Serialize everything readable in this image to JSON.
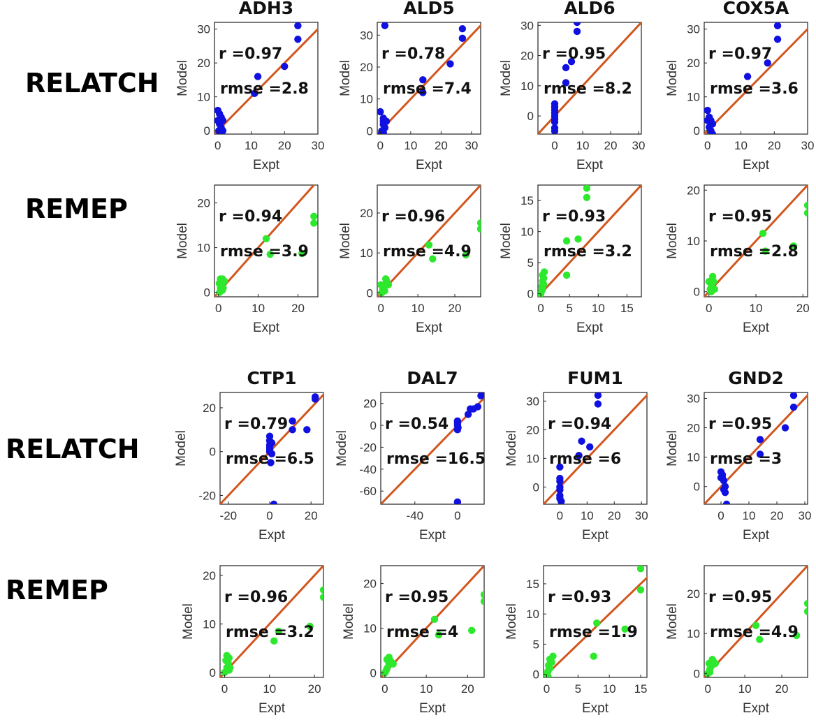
{
  "colors": {
    "relatch_points": "#1010e0",
    "remep_points": "#2ee82e",
    "identity_line": "#d2561e",
    "axes": "#222222"
  },
  "row_labels": [
    "RELATCH",
    "REMEP",
    "RELATCH",
    "REMEP"
  ],
  "chart_data": [
    {
      "type": "scatter",
      "title": "ADH3",
      "method": "RELATCH",
      "xlabel": "Expt",
      "ylabel": "Model",
      "xlim": [
        -1,
        30
      ],
      "ylim": [
        -1,
        32
      ],
      "xticks": [
        0,
        10,
        20,
        30
      ],
      "yticks": [
        0,
        10,
        20,
        30
      ],
      "r_label": "r =0.97",
      "rmse_label": "rmse =2.8",
      "points": [
        [
          0,
          6
        ],
        [
          0.5,
          5
        ],
        [
          1,
          4
        ],
        [
          1.5,
          3
        ],
        [
          0.5,
          2
        ],
        [
          1,
          1
        ],
        [
          1.5,
          0
        ],
        [
          0.3,
          0
        ],
        [
          1,
          -1
        ],
        [
          11,
          11
        ],
        [
          12,
          16
        ],
        [
          20,
          19
        ],
        [
          24,
          27
        ],
        [
          24,
          31
        ],
        [
          1,
          3
        ],
        [
          0,
          3
        ]
      ]
    },
    {
      "type": "scatter",
      "title": "ALD5",
      "method": "RELATCH",
      "xlabel": "Expt",
      "ylabel": "Model",
      "xlim": [
        -1,
        33
      ],
      "ylim": [
        -1,
        34
      ],
      "xticks": [
        0,
        10,
        20,
        30
      ],
      "yticks": [
        0,
        10,
        20,
        30
      ],
      "r_label": "r =0.78",
      "rmse_label": "rmse =7.4",
      "points": [
        [
          0,
          6
        ],
        [
          1,
          4
        ],
        [
          1,
          3
        ],
        [
          2,
          3
        ],
        [
          1,
          2
        ],
        [
          1.5,
          1
        ],
        [
          0.5,
          0
        ],
        [
          1,
          -0.5
        ],
        [
          0.3,
          -1
        ],
        [
          1.5,
          33
        ],
        [
          14,
          12
        ],
        [
          14,
          16
        ],
        [
          23,
          21
        ],
        [
          27,
          29
        ],
        [
          27,
          32
        ]
      ]
    },
    {
      "type": "scatter",
      "title": "ALD6",
      "method": "RELATCH",
      "xlabel": "Expt",
      "ylabel": "Model",
      "xlim": [
        -6,
        31
      ],
      "ylim": [
        -6,
        31
      ],
      "xticks": [
        0,
        10,
        20,
        30
      ],
      "yticks": [
        0,
        10,
        20,
        30
      ],
      "r_label": "r =0.95",
      "rmse_label": "rmse =8.2",
      "points": [
        [
          0,
          4
        ],
        [
          0,
          3
        ],
        [
          0,
          2
        ],
        [
          0,
          1
        ],
        [
          0,
          0
        ],
        [
          0,
          -1
        ],
        [
          0,
          -2
        ],
        [
          0,
          -4
        ],
        [
          0,
          -5
        ],
        [
          4,
          11
        ],
        [
          4,
          16
        ],
        [
          6,
          18
        ],
        [
          8,
          28
        ],
        [
          8,
          31
        ]
      ]
    },
    {
      "type": "scatter",
      "title": "COX5A",
      "method": "RELATCH",
      "xlabel": "Expt",
      "ylabel": "Model",
      "xlim": [
        -1,
        30
      ],
      "ylim": [
        -1,
        32
      ],
      "xticks": [
        0,
        10,
        20,
        30
      ],
      "yticks": [
        0,
        10,
        20,
        30
      ],
      "r_label": "r =0.97",
      "rmse_label": "rmse =3.6",
      "points": [
        [
          0,
          6
        ],
        [
          0.5,
          4
        ],
        [
          1,
          3
        ],
        [
          1.5,
          2
        ],
        [
          0.5,
          1
        ],
        [
          1,
          0
        ],
        [
          1.5,
          -1
        ],
        [
          12,
          16
        ],
        [
          18,
          20
        ],
        [
          21,
          27
        ],
        [
          21,
          31
        ],
        [
          0,
          3
        ]
      ]
    },
    {
      "type": "scatter",
      "title": "",
      "method": "REMEP",
      "xlabel": "Expt",
      "ylabel": "Model",
      "xlim": [
        -1,
        25
      ],
      "ylim": [
        -1,
        24
      ],
      "xticks": [
        0,
        10,
        20
      ],
      "yticks": [
        0,
        10,
        20
      ],
      "r_label": "r =0.94",
      "rmse_label": "rmse =3.9",
      "points": [
        [
          0.3,
          0
        ],
        [
          0.5,
          1
        ],
        [
          0.8,
          2
        ],
        [
          1,
          3
        ],
        [
          1.2,
          1
        ],
        [
          0.5,
          3
        ],
        [
          1,
          0.5
        ],
        [
          0.2,
          2
        ],
        [
          1.5,
          2.5
        ],
        [
          12,
          12
        ],
        [
          13,
          8.5
        ],
        [
          21,
          8.7
        ],
        [
          24,
          17
        ],
        [
          24,
          15.5
        ]
      ]
    },
    {
      "type": "scatter",
      "title": "",
      "method": "REMEP",
      "xlabel": "Expt",
      "ylabel": "Model",
      "xlim": [
        -1,
        27
      ],
      "ylim": [
        -1,
        27
      ],
      "xticks": [
        0,
        10,
        20
      ],
      "yticks": [
        0,
        10,
        20
      ],
      "r_label": "r =0.96",
      "rmse_label": "rmse =4.9",
      "points": [
        [
          0,
          2
        ],
        [
          0.5,
          1
        ],
        [
          1,
          0.5
        ],
        [
          1.5,
          3
        ],
        [
          1,
          2
        ],
        [
          1.3,
          3.5
        ],
        [
          0.2,
          0
        ],
        [
          2,
          2
        ],
        [
          13,
          12
        ],
        [
          14,
          8.5
        ],
        [
          23,
          9.5
        ],
        [
          27,
          17.5
        ],
        [
          27,
          16
        ]
      ]
    },
    {
      "type": "scatter",
      "title": "",
      "method": "REMEP",
      "xlabel": "Expt",
      "ylabel": "Model",
      "xlim": [
        -0.5,
        17.5
      ],
      "ylim": [
        -0.5,
        17.5
      ],
      "xticks": [
        0,
        5,
        10,
        15
      ],
      "yticks": [
        0,
        5,
        10,
        15
      ],
      "r_label": "r =0.93",
      "rmse_label": "rmse =3.2",
      "points": [
        [
          0,
          0
        ],
        [
          0.2,
          0.5
        ],
        [
          0.3,
          1
        ],
        [
          0.5,
          1.5
        ],
        [
          0.3,
          2
        ],
        [
          0.5,
          2.5
        ],
        [
          0.3,
          3
        ],
        [
          0.6,
          3.5
        ],
        [
          0.2,
          1.2
        ],
        [
          4.5,
          3
        ],
        [
          4.5,
          8.5
        ],
        [
          6.5,
          8.8
        ],
        [
          8,
          15.5
        ],
        [
          8,
          17
        ]
      ]
    },
    {
      "type": "scatter",
      "title": "",
      "method": "REMEP",
      "xlabel": "Expt",
      "ylabel": "Model",
      "xlim": [
        -1,
        21
      ],
      "ylim": [
        -1,
        21
      ],
      "xticks": [
        0,
        10,
        20
      ],
      "yticks": [
        0,
        10,
        20
      ],
      "r_label": "r =0.95",
      "rmse_label": "rmse =2.8",
      "points": [
        [
          0,
          2
        ],
        [
          0.5,
          1
        ],
        [
          0.8,
          3
        ],
        [
          1,
          2
        ],
        [
          0.5,
          0
        ],
        [
          1.2,
          0.5
        ],
        [
          0.3,
          0.5
        ],
        [
          11.5,
          11.5
        ],
        [
          12,
          8
        ],
        [
          18,
          9
        ],
        [
          21,
          17
        ],
        [
          21,
          15.5
        ]
      ]
    },
    {
      "type": "scatter",
      "title": "CTP1",
      "method": "RELATCH",
      "xlabel": "Expt",
      "ylabel": "Model",
      "xlim": [
        -24,
        26
      ],
      "ylim": [
        -24,
        27
      ],
      "xticks": [
        -20,
        0,
        20
      ],
      "yticks": [
        -20,
        0,
        20
      ],
      "r_label": "r =0.79",
      "rmse_label": "rmse =6.5",
      "points": [
        [
          0,
          7
        ],
        [
          0,
          5
        ],
        [
          0,
          3
        ],
        [
          0,
          2
        ],
        [
          0,
          1
        ],
        [
          0,
          0
        ],
        [
          1,
          -1
        ],
        [
          0.5,
          -5
        ],
        [
          2,
          -24
        ],
        [
          11,
          10
        ],
        [
          11,
          14
        ],
        [
          18,
          10
        ],
        [
          22,
          24
        ],
        [
          22,
          25
        ],
        [
          1,
          4
        ]
      ]
    },
    {
      "type": "scatter",
      "title": "DAL7",
      "method": "RELATCH",
      "xlabel": "Expt",
      "ylabel": "Model",
      "xlim": [
        -72,
        25
      ],
      "ylim": [
        -72,
        30
      ],
      "xticks": [
        -40,
        0
      ],
      "yticks": [
        -60,
        -40,
        -20,
        0,
        20
      ],
      "r_label": "r =0.54",
      "rmse_label": "rmse =16.5",
      "points": [
        [
          0,
          4
        ],
        [
          0,
          2
        ],
        [
          0,
          0
        ],
        [
          0.5,
          -2
        ],
        [
          0,
          -4
        ],
        [
          0,
          -70
        ],
        [
          10,
          10
        ],
        [
          12,
          15
        ],
        [
          15,
          15
        ],
        [
          19,
          17
        ],
        [
          22,
          27
        ],
        [
          23,
          28
        ]
      ]
    },
    {
      "type": "scatter",
      "title": "FUM1",
      "method": "RELATCH",
      "xlabel": "Expt",
      "ylabel": "Model",
      "xlim": [
        -6,
        32
      ],
      "ylim": [
        -6,
        33
      ],
      "xticks": [
        0,
        10,
        20,
        30
      ],
      "yticks": [
        0,
        10,
        20,
        30
      ],
      "r_label": "r =0.94",
      "rmse_label": "rmse =6",
      "points": [
        [
          0,
          7
        ],
        [
          0,
          3
        ],
        [
          0,
          2
        ],
        [
          0,
          0
        ],
        [
          0,
          -1
        ],
        [
          0,
          -3
        ],
        [
          0,
          -4
        ],
        [
          0.5,
          -5
        ],
        [
          7,
          11
        ],
        [
          8,
          16
        ],
        [
          11,
          14
        ],
        [
          14,
          29
        ],
        [
          14,
          32
        ]
      ]
    },
    {
      "type": "scatter",
      "title": "GND2",
      "method": "RELATCH",
      "xlabel": "Expt",
      "ylabel": "Model",
      "xlim": [
        -6,
        31
      ],
      "ylim": [
        -6,
        32
      ],
      "xticks": [
        0,
        10,
        20,
        30
      ],
      "yticks": [
        0,
        10,
        20,
        30
      ],
      "r_label": "r =0.95",
      "rmse_label": "rmse =3",
      "points": [
        [
          0,
          5
        ],
        [
          0.5,
          4
        ],
        [
          0.5,
          3
        ],
        [
          1,
          2
        ],
        [
          1.5,
          0
        ],
        [
          1,
          -1
        ],
        [
          1.5,
          -2
        ],
        [
          2,
          -6
        ],
        [
          14,
          11
        ],
        [
          14,
          16
        ],
        [
          23,
          20
        ],
        [
          26,
          27
        ],
        [
          26,
          31
        ],
        [
          0,
          3
        ]
      ]
    },
    {
      "type": "scatter",
      "title": "",
      "method": "REMEP",
      "xlabel": "Expt",
      "ylabel": "Model",
      "xlim": [
        -1,
        22
      ],
      "ylim": [
        -1,
        22
      ],
      "xticks": [
        0,
        10,
        20
      ],
      "yticks": [
        0,
        10,
        20
      ],
      "r_label": "r =0.96",
      "rmse_label": "rmse =3.2",
      "points": [
        [
          0,
          0
        ],
        [
          0.5,
          1
        ],
        [
          0.8,
          2
        ],
        [
          1,
          3
        ],
        [
          0.3,
          2.5
        ],
        [
          1.2,
          1
        ],
        [
          0.5,
          3.5
        ],
        [
          1,
          0.5
        ],
        [
          11,
          6.5
        ],
        [
          12,
          8.5
        ],
        [
          19,
          9.5
        ],
        [
          22,
          17
        ],
        [
          22,
          15.5
        ]
      ]
    },
    {
      "type": "scatter",
      "title": "",
      "method": "REMEP",
      "xlabel": "Expt",
      "ylabel": "Model",
      "xlim": [
        -1,
        24
      ],
      "ylim": [
        -1,
        24
      ],
      "xticks": [
        0,
        10,
        20
      ],
      "yticks": [
        0,
        10,
        20
      ],
      "r_label": "r =0.95",
      "rmse_label": "rmse =4",
      "points": [
        [
          0,
          0
        ],
        [
          0.5,
          1
        ],
        [
          1,
          2
        ],
        [
          1.5,
          2.5
        ],
        [
          0.5,
          3
        ],
        [
          1,
          3.5
        ],
        [
          0.3,
          0.5
        ],
        [
          2,
          2
        ],
        [
          12,
          12
        ],
        [
          13,
          8.5
        ],
        [
          21,
          9.5
        ],
        [
          24,
          17.5
        ],
        [
          24,
          16
        ]
      ]
    },
    {
      "type": "scatter",
      "title": "",
      "method": "REMEP",
      "xlabel": "Expt",
      "ylabel": "Model",
      "xlim": [
        -0.5,
        16
      ],
      "ylim": [
        -0.5,
        18
      ],
      "xticks": [
        0,
        5,
        10,
        15
      ],
      "yticks": [
        0,
        5,
        10,
        15
      ],
      "r_label": "r =0.93",
      "rmse_label": "rmse =1.9",
      "points": [
        [
          0,
          0
        ],
        [
          0.2,
          0.5
        ],
        [
          0.5,
          1
        ],
        [
          0.3,
          1.5
        ],
        [
          0.8,
          2
        ],
        [
          0.5,
          2.5
        ],
        [
          1,
          3
        ],
        [
          0.2,
          -0.3
        ],
        [
          7.5,
          3
        ],
        [
          8,
          8.5
        ],
        [
          12.5,
          7.5
        ],
        [
          15,
          14
        ],
        [
          15,
          17.5
        ]
      ]
    },
    {
      "type": "scatter",
      "title": "",
      "method": "REMEP",
      "xlabel": "Expt",
      "ylabel": "Model",
      "xlim": [
        -1,
        27
      ],
      "ylim": [
        -1,
        27
      ],
      "xticks": [
        0,
        10,
        20
      ],
      "yticks": [
        0,
        10,
        20
      ],
      "r_label": "r =0.95",
      "rmse_label": "rmse =4.9",
      "points": [
        [
          0,
          0
        ],
        [
          0.5,
          1
        ],
        [
          1,
          2
        ],
        [
          1.5,
          3
        ],
        [
          0.3,
          2.5
        ],
        [
          1.2,
          3.5
        ],
        [
          0.5,
          0.3
        ],
        [
          2,
          2.5
        ],
        [
          13,
          12
        ],
        [
          14,
          8.5
        ],
        [
          24,
          9.5
        ],
        [
          27,
          17.5
        ],
        [
          27,
          15.5
        ]
      ]
    }
  ]
}
